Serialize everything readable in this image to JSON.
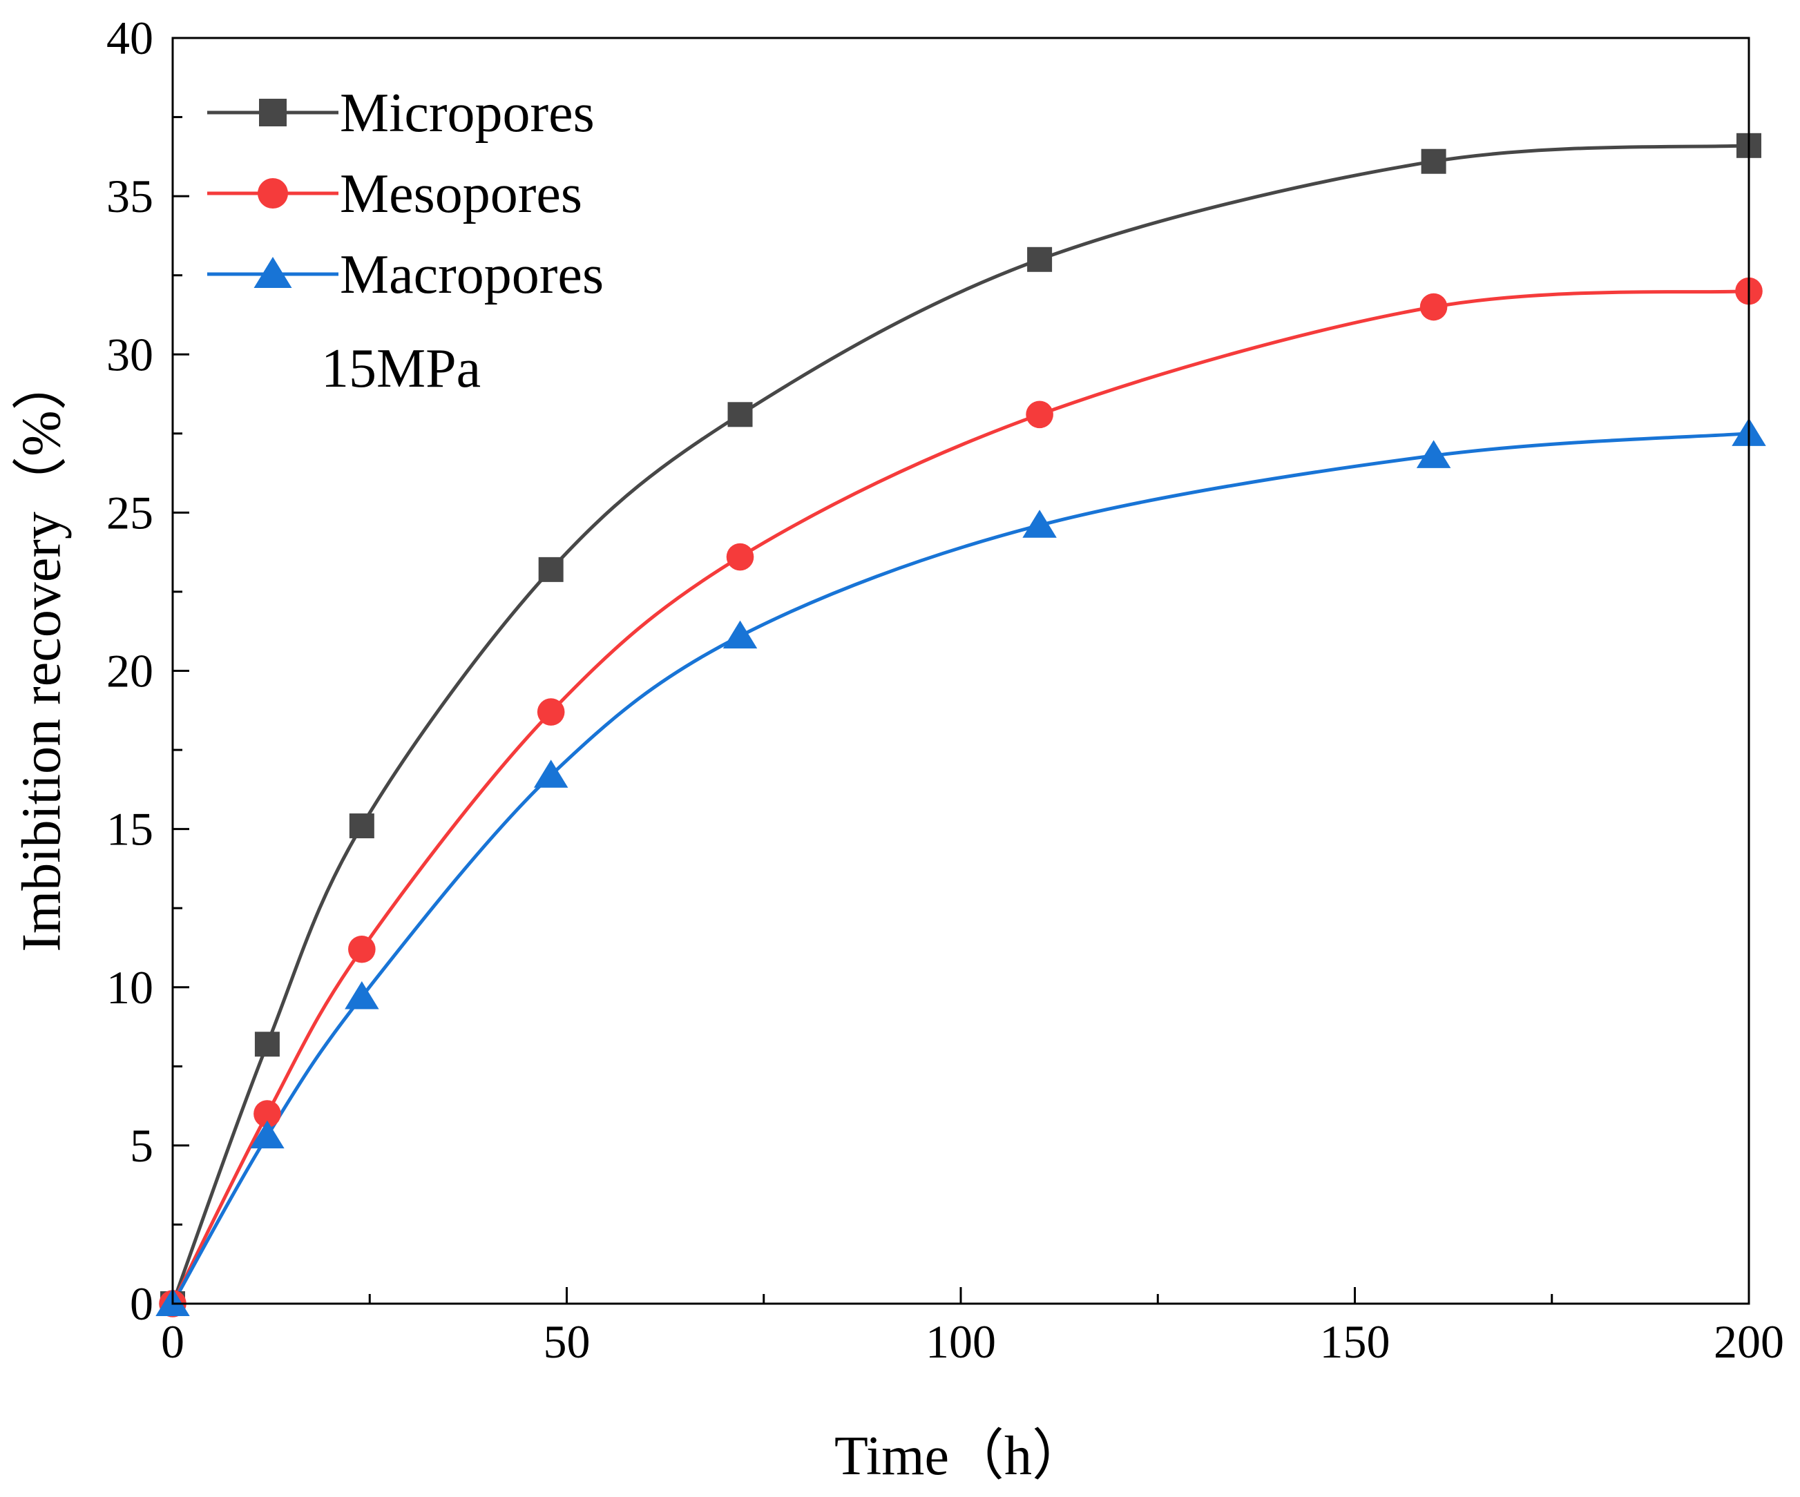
{
  "chart_data": {
    "type": "line",
    "title": "",
    "xlabel": "Time（h）",
    "ylabel": "Imbibition recovery（%）",
    "xlim": [
      0,
      200
    ],
    "ylim": [
      0,
      40
    ],
    "xticks": [
      0,
      50,
      100,
      150,
      200
    ],
    "yticks": [
      0,
      5,
      10,
      15,
      20,
      25,
      30,
      35,
      40
    ],
    "xtick_labels": [
      "0",
      "50",
      "100",
      "150",
      "200"
    ],
    "ytick_labels": [
      "0",
      "5",
      "10",
      "15",
      "20",
      "25",
      "30",
      "35",
      "40"
    ],
    "x_minor_step": 25,
    "y_minor_step": 2.5,
    "grid": false,
    "legend_position": "top-left",
    "annotation": "15MPa",
    "x": [
      0,
      12,
      24,
      48,
      72,
      110,
      160,
      200
    ],
    "series": [
      {
        "name": "Micropores",
        "marker": "square",
        "color": "#474747",
        "values": [
          0,
          8.2,
          15.1,
          23.2,
          28.1,
          33.0,
          36.1,
          36.6
        ]
      },
      {
        "name": "Mesopores",
        "marker": "circle",
        "color": "#f53b3b",
        "values": [
          0,
          6.0,
          11.2,
          18.7,
          23.6,
          28.1,
          31.5,
          32.0
        ]
      },
      {
        "name": "Macropores",
        "marker": "triangle",
        "color": "#1874d6",
        "values": [
          0,
          5.3,
          9.7,
          16.7,
          21.1,
          24.6,
          26.8,
          27.5
        ]
      }
    ]
  }
}
